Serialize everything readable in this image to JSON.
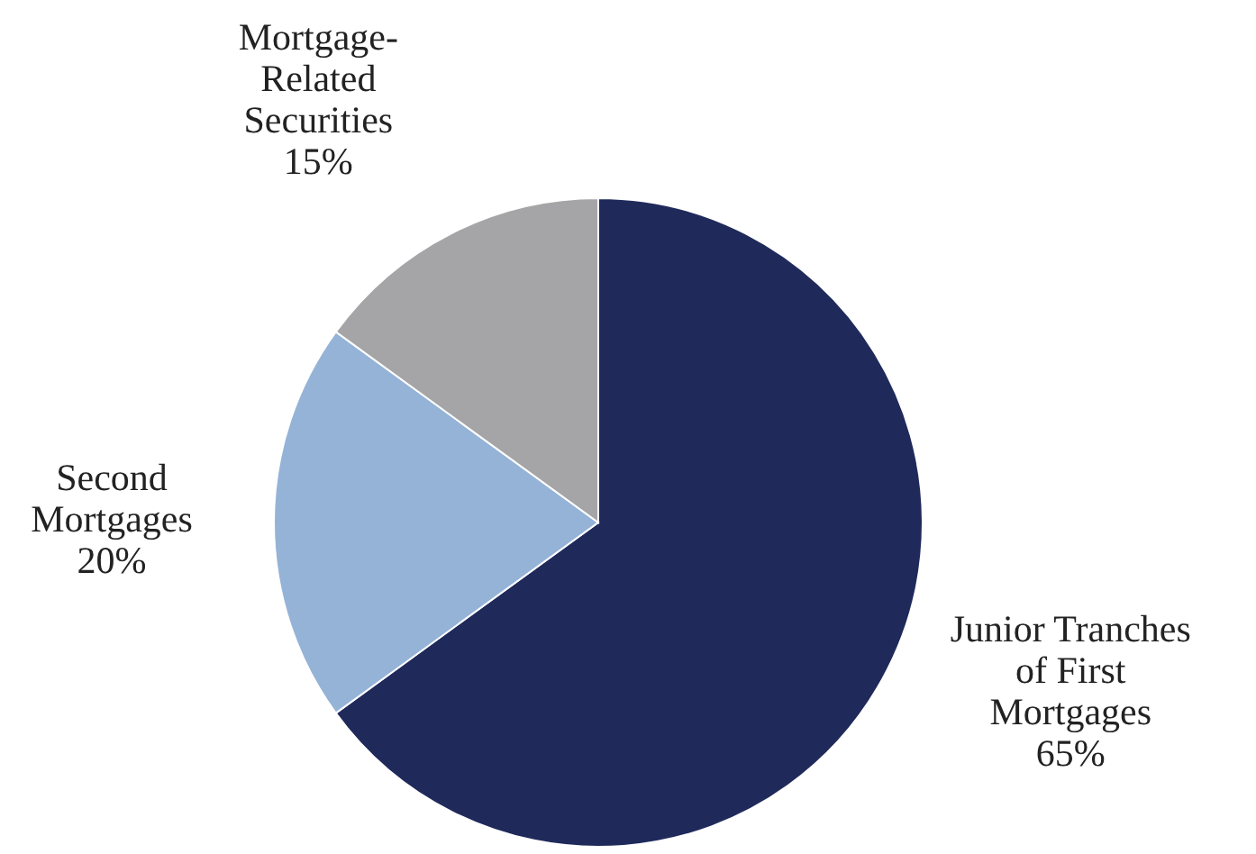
{
  "chart_data": {
    "type": "pie",
    "categories": [
      "Junior Tranches of First Mortgages",
      "Second Mortgages",
      "Mortgage-Related Securities"
    ],
    "values": [
      65,
      20,
      15
    ],
    "value_labels": [
      "65%",
      "20%",
      "15%"
    ],
    "colors": [
      "#1f2a5b",
      "#95b3d7",
      "#a5a5a7"
    ]
  }
}
